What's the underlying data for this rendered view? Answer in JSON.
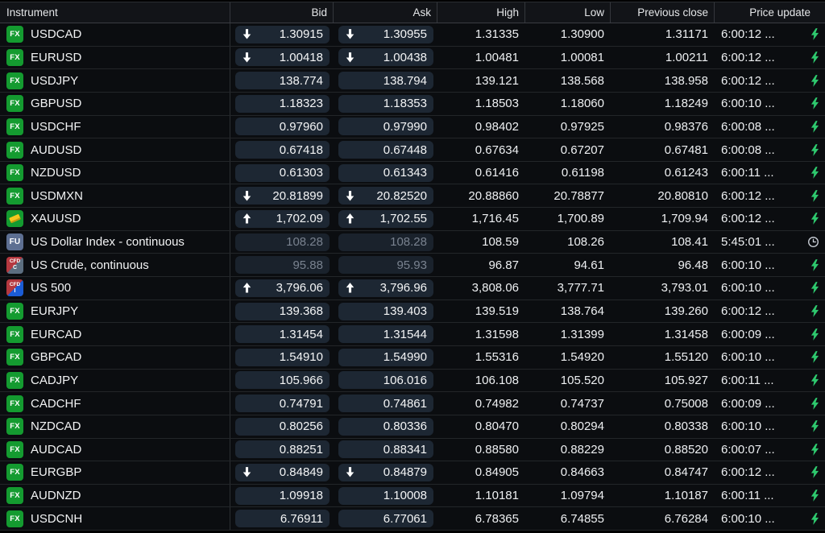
{
  "header": {
    "columns": [
      {
        "label": "Instrument"
      },
      {
        "label": "Bid"
      },
      {
        "label": "Ask"
      },
      {
        "label": "High"
      },
      {
        "label": "Low"
      },
      {
        "label": "Previous close"
      },
      {
        "label": "Price update"
      }
    ]
  },
  "colors": {
    "row_bg": "#0b0d10",
    "pill_bg": "#1d2733",
    "text": "#eef0f2",
    "stale_text": "#79828f",
    "bolt_green": "#2ec96e",
    "fx_badge_green": "#149b30",
    "fu_badge_slate": "#5d6f92",
    "cfd_red": "#b5383f",
    "cfd_gray": "#5c6e80",
    "cfd_blue": "#1b5cd6",
    "gold": "#f3c71f"
  },
  "icons": {
    "bolt": "lightning-bolt-icon",
    "clock": "clock-icon",
    "up": "arrow-up-icon",
    "down": "arrow-down-icon"
  },
  "rows": [
    {
      "badge": {
        "type": "fx",
        "label": "FX"
      },
      "name": "USDCAD",
      "bid_dir": "down",
      "bid": "1.30915",
      "ask_dir": "down",
      "ask": "1.30955",
      "high": "1.31335",
      "low": "1.30900",
      "prev": "1.31171",
      "time": "6:00:12 ...",
      "icon": "bolt",
      "stale": false
    },
    {
      "badge": {
        "type": "fx",
        "label": "FX"
      },
      "name": "EURUSD",
      "bid_dir": "down",
      "bid": "1.00418",
      "ask_dir": "down",
      "ask": "1.00438",
      "high": "1.00481",
      "low": "1.00081",
      "prev": "1.00211",
      "time": "6:00:12 ...",
      "icon": "bolt",
      "stale": false
    },
    {
      "badge": {
        "type": "fx",
        "label": "FX"
      },
      "name": "USDJPY",
      "bid_dir": null,
      "bid": "138.774",
      "ask_dir": null,
      "ask": "138.794",
      "high": "139.121",
      "low": "138.568",
      "prev": "138.958",
      "time": "6:00:12 ...",
      "icon": "bolt",
      "stale": false
    },
    {
      "badge": {
        "type": "fx",
        "label": "FX"
      },
      "name": "GBPUSD",
      "bid_dir": null,
      "bid": "1.18323",
      "ask_dir": null,
      "ask": "1.18353",
      "high": "1.18503",
      "low": "1.18060",
      "prev": "1.18249",
      "time": "6:00:10 ...",
      "icon": "bolt",
      "stale": false
    },
    {
      "badge": {
        "type": "fx",
        "label": "FX"
      },
      "name": "USDCHF",
      "bid_dir": null,
      "bid": "0.97960",
      "ask_dir": null,
      "ask": "0.97990",
      "high": "0.98402",
      "low": "0.97925",
      "prev": "0.98376",
      "time": "6:00:08 ...",
      "icon": "bolt",
      "stale": false
    },
    {
      "badge": {
        "type": "fx",
        "label": "FX"
      },
      "name": "AUDUSD",
      "bid_dir": null,
      "bid": "0.67418",
      "ask_dir": null,
      "ask": "0.67448",
      "high": "0.67634",
      "low": "0.67207",
      "prev": "0.67481",
      "time": "6:00:08 ...",
      "icon": "bolt",
      "stale": false
    },
    {
      "badge": {
        "type": "fx",
        "label": "FX"
      },
      "name": "NZDUSD",
      "bid_dir": null,
      "bid": "0.61303",
      "ask_dir": null,
      "ask": "0.61343",
      "high": "0.61416",
      "low": "0.61198",
      "prev": "0.61243",
      "time": "6:00:11 ...",
      "icon": "bolt",
      "stale": false
    },
    {
      "badge": {
        "type": "fx",
        "label": "FX"
      },
      "name": "USDMXN",
      "bid_dir": "down",
      "bid": "20.81899",
      "ask_dir": "down",
      "ask": "20.82520",
      "high": "20.88860",
      "low": "20.78877",
      "prev": "20.80810",
      "time": "6:00:12 ...",
      "icon": "bolt",
      "stale": false
    },
    {
      "badge": {
        "type": "gold",
        "label": ""
      },
      "name": "XAUUSD",
      "bid_dir": "up",
      "bid": "1,702.09",
      "ask_dir": "up",
      "ask": "1,702.55",
      "high": "1,716.45",
      "low": "1,700.89",
      "prev": "1,709.94",
      "time": "6:00:12 ...",
      "icon": "bolt",
      "stale": false
    },
    {
      "badge": {
        "type": "fu",
        "label": "FU"
      },
      "name": "US Dollar Index - continuous",
      "bid_dir": null,
      "bid": "108.28",
      "ask_dir": null,
      "ask": "108.28",
      "high": "108.59",
      "low": "108.26",
      "prev": "108.41",
      "time": "5:45:01 ...",
      "icon": "clock",
      "stale": true
    },
    {
      "badge": {
        "type": "cfd-c",
        "label": "CFD",
        "sub": "C"
      },
      "name": "US Crude, continuous",
      "bid_dir": null,
      "bid": "95.88",
      "ask_dir": null,
      "ask": "95.93",
      "high": "96.87",
      "low": "94.61",
      "prev": "96.48",
      "time": "6:00:10 ...",
      "icon": "bolt",
      "stale": true
    },
    {
      "badge": {
        "type": "cfd-i",
        "label": "CFD",
        "sub": "I"
      },
      "name": "US 500",
      "bid_dir": "up",
      "bid": "3,796.06",
      "ask_dir": "up",
      "ask": "3,796.96",
      "high": "3,808.06",
      "low": "3,777.71",
      "prev": "3,793.01",
      "time": "6:00:10 ...",
      "icon": "bolt",
      "stale": false
    },
    {
      "badge": {
        "type": "fx",
        "label": "FX"
      },
      "name": "EURJPY",
      "bid_dir": null,
      "bid": "139.368",
      "ask_dir": null,
      "ask": "139.403",
      "high": "139.519",
      "low": "138.764",
      "prev": "139.260",
      "time": "6:00:12 ...",
      "icon": "bolt",
      "stale": false
    },
    {
      "badge": {
        "type": "fx",
        "label": "FX"
      },
      "name": "EURCAD",
      "bid_dir": null,
      "bid": "1.31454",
      "ask_dir": null,
      "ask": "1.31544",
      "high": "1.31598",
      "low": "1.31399",
      "prev": "1.31458",
      "time": "6:00:09 ...",
      "icon": "bolt",
      "stale": false
    },
    {
      "badge": {
        "type": "fx",
        "label": "FX"
      },
      "name": "GBPCAD",
      "bid_dir": null,
      "bid": "1.54910",
      "ask_dir": null,
      "ask": "1.54990",
      "high": "1.55316",
      "low": "1.54920",
      "prev": "1.55120",
      "time": "6:00:10 ...",
      "icon": "bolt",
      "stale": false
    },
    {
      "badge": {
        "type": "fx",
        "label": "FX"
      },
      "name": "CADJPY",
      "bid_dir": null,
      "bid": "105.966",
      "ask_dir": null,
      "ask": "106.016",
      "high": "106.108",
      "low": "105.520",
      "prev": "105.927",
      "time": "6:00:11 ...",
      "icon": "bolt",
      "stale": false
    },
    {
      "badge": {
        "type": "fx",
        "label": "FX"
      },
      "name": "CADCHF",
      "bid_dir": null,
      "bid": "0.74791",
      "ask_dir": null,
      "ask": "0.74861",
      "high": "0.74982",
      "low": "0.74737",
      "prev": "0.75008",
      "time": "6:00:09 ...",
      "icon": "bolt",
      "stale": false
    },
    {
      "badge": {
        "type": "fx",
        "label": "FX"
      },
      "name": "NZDCAD",
      "bid_dir": null,
      "bid": "0.80256",
      "ask_dir": null,
      "ask": "0.80336",
      "high": "0.80470",
      "low": "0.80294",
      "prev": "0.80338",
      "time": "6:00:10 ...",
      "icon": "bolt",
      "stale": false
    },
    {
      "badge": {
        "type": "fx",
        "label": "FX"
      },
      "name": "AUDCAD",
      "bid_dir": null,
      "bid": "0.88251",
      "ask_dir": null,
      "ask": "0.88341",
      "high": "0.88580",
      "low": "0.88229",
      "prev": "0.88520",
      "time": "6:00:07 ...",
      "icon": "bolt",
      "stale": false
    },
    {
      "badge": {
        "type": "fx",
        "label": "FX"
      },
      "name": "EURGBP",
      "bid_dir": "down",
      "bid": "0.84849",
      "ask_dir": "down",
      "ask": "0.84879",
      "high": "0.84905",
      "low": "0.84663",
      "prev": "0.84747",
      "time": "6:00:12 ...",
      "icon": "bolt",
      "stale": false
    },
    {
      "badge": {
        "type": "fx",
        "label": "FX"
      },
      "name": "AUDNZD",
      "bid_dir": null,
      "bid": "1.09918",
      "ask_dir": null,
      "ask": "1.10008",
      "high": "1.10181",
      "low": "1.09794",
      "prev": "1.10187",
      "time": "6:00:11 ...",
      "icon": "bolt",
      "stale": false
    },
    {
      "badge": {
        "type": "fx",
        "label": "FX"
      },
      "name": "USDCNH",
      "bid_dir": null,
      "bid": "6.76911",
      "ask_dir": null,
      "ask": "6.77061",
      "high": "6.78365",
      "low": "6.74855",
      "prev": "6.76284",
      "time": "6:00:10 ...",
      "icon": "bolt",
      "stale": false
    }
  ]
}
